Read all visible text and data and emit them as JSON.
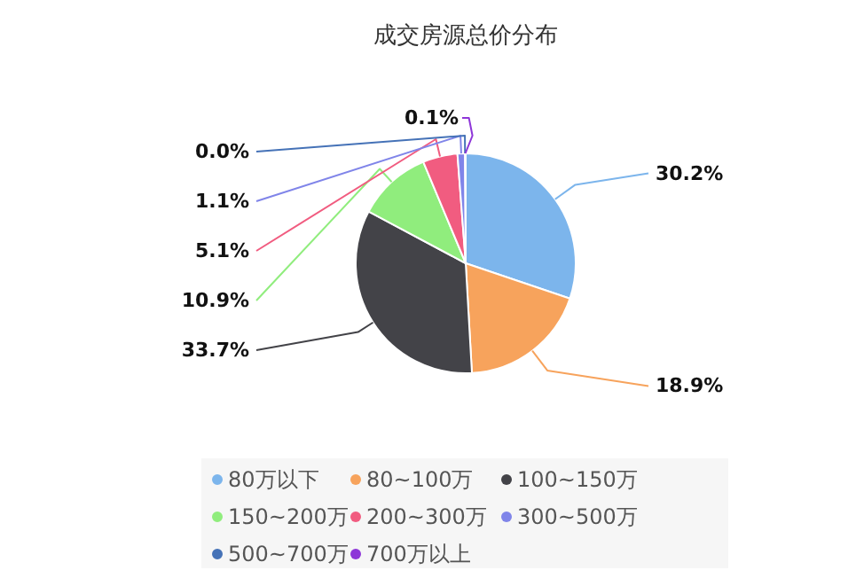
{
  "chart_data": {
    "type": "pie",
    "title": "成交房源总价分布",
    "categories": [
      "80万以下",
      "80~100万",
      "100~150万",
      "150~200万",
      "200~300万",
      "300~500万",
      "500~700万",
      "700万以上"
    ],
    "values": [
      30.2,
      18.9,
      33.7,
      10.9,
      5.1,
      1.1,
      0.0,
      0.1
    ],
    "value_labels": [
      "30.2%",
      "18.9%",
      "33.7%",
      "10.9%",
      "5.1%",
      "1.1%",
      "0.0%",
      "0.1%"
    ],
    "colors": [
      "#7cb5ec",
      "#f7a35c",
      "#434348",
      "#90ed7d",
      "#f15c80",
      "#8085e9",
      "#4572b7",
      "#8e36d8"
    ],
    "legend": "bottom"
  }
}
